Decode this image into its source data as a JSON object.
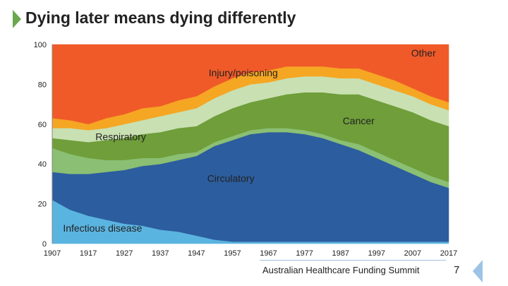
{
  "slide": {
    "title": "Dying later means dying differently",
    "footer": "Australian Healthcare Funding Summit",
    "page_number": "7"
  },
  "chart_data": {
    "type": "area",
    "stacked": true,
    "title": "",
    "xlabel": "",
    "ylabel": "",
    "ylim": [
      0,
      100
    ],
    "xlim": [
      1907,
      2017
    ],
    "y_ticks": [
      0,
      20,
      40,
      60,
      80,
      100
    ],
    "x_ticks": [
      1907,
      1917,
      1927,
      1937,
      1947,
      1957,
      1967,
      1977,
      1987,
      1997,
      2007,
      2017
    ],
    "x": [
      1907,
      1912,
      1917,
      1922,
      1927,
      1932,
      1937,
      1942,
      1947,
      1952,
      1957,
      1962,
      1967,
      1972,
      1977,
      1982,
      1987,
      1992,
      1997,
      2002,
      2007,
      2012,
      2017
    ],
    "series": [
      {
        "name": "Infectious disease",
        "color": "#5ab4e0",
        "values": [
          22,
          17,
          14,
          12,
          10,
          9,
          7,
          6,
          4,
          2,
          1,
          1,
          1,
          1,
          1,
          1,
          1,
          1,
          1,
          1,
          1,
          1,
          1
        ]
      },
      {
        "name": "Circulatory",
        "color": "#2c5d9e",
        "values": [
          14,
          18,
          21,
          24,
          27,
          30,
          33,
          36,
          40,
          47,
          51,
          54,
          55,
          55,
          54,
          52,
          49,
          46,
          42,
          38,
          34,
          30,
          27
        ]
      },
      {
        "name": "Respiratory",
        "color": "#8bbf73",
        "values": [
          12,
          10,
          8,
          6,
          5,
          4,
          3,
          3,
          2,
          2,
          2,
          2,
          2,
          2,
          2,
          2,
          2,
          3,
          3,
          3,
          3,
          3,
          3
        ]
      },
      {
        "name": "Cancer",
        "color": "#6f9e3a",
        "values": [
          5,
          7,
          8,
          10,
          11,
          12,
          13,
          13,
          13,
          13,
          14,
          14,
          15,
          17,
          19,
          21,
          23,
          25,
          26,
          27,
          28,
          28,
          28
        ]
      },
      {
        "name": "Other (hatched band)",
        "color": "#c9e0b2",
        "values": [
          5,
          6,
          6,
          6,
          7,
          7,
          8,
          8,
          9,
          9,
          9,
          9,
          8,
          8,
          8,
          8,
          8,
          8,
          8,
          8,
          8,
          8,
          8
        ]
      },
      {
        "name": "Injury/poisoning",
        "color": "#f5a623",
        "values": [
          5,
          4,
          3,
          5,
          5,
          6,
          5,
          6,
          6,
          6,
          6,
          6,
          6,
          6,
          5,
          5,
          5,
          5,
          5,
          5,
          4,
          4,
          4
        ]
      },
      {
        "name": "Other",
        "color": "#f05a28",
        "values": [
          37,
          38,
          40,
          37,
          35,
          32,
          31,
          28,
          26,
          21,
          17,
          14,
          13,
          11,
          11,
          11,
          12,
          12,
          15,
          18,
          22,
          26,
          29
        ]
      }
    ],
    "annotations": [
      "Other",
      "Injury/poisoning",
      "Cancer",
      "Respiratory",
      "Circulatory",
      "Infectious disease"
    ]
  }
}
